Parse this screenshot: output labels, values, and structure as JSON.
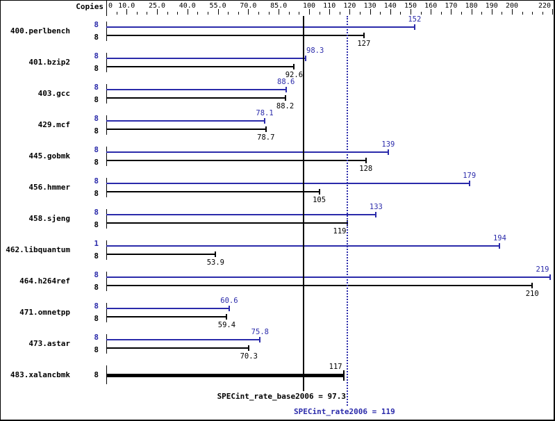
{
  "chart_data": {
    "type": "bar",
    "orientation": "horizontal",
    "title": "",
    "axis_title": "Copies",
    "xlabel": "",
    "ylabel": "",
    "xlim": [
      0,
      220
    ],
    "grid": false,
    "legend": null,
    "minor_tick_step": 5,
    "tick_labels": [
      {
        "value": 0,
        "text": "0",
        "align": "start"
      },
      {
        "value": 10,
        "text": "10.0",
        "align": "middle"
      },
      {
        "value": 25,
        "text": "25.0",
        "align": "middle"
      },
      {
        "value": 40,
        "text": "40.0",
        "align": "middle"
      },
      {
        "value": 55,
        "text": "55.0",
        "align": "middle"
      },
      {
        "value": 70,
        "text": "70.0",
        "align": "middle"
      },
      {
        "value": 85,
        "text": "85.0",
        "align": "middle"
      },
      {
        "value": 100,
        "text": "100",
        "align": "middle"
      },
      {
        "value": 110,
        "text": "110",
        "align": "middle"
      },
      {
        "value": 120,
        "text": "120",
        "align": "middle"
      },
      {
        "value": 130,
        "text": "130",
        "align": "middle"
      },
      {
        "value": 140,
        "text": "140",
        "align": "middle"
      },
      {
        "value": 150,
        "text": "150",
        "align": "middle"
      },
      {
        "value": 160,
        "text": "160",
        "align": "middle"
      },
      {
        "value": 170,
        "text": "170",
        "align": "middle"
      },
      {
        "value": 180,
        "text": "180",
        "align": "middle"
      },
      {
        "value": 190,
        "text": "190",
        "align": "middle"
      },
      {
        "value": 200,
        "text": "200",
        "align": "middle"
      },
      {
        "value": 220,
        "text": "220",
        "align": "end"
      }
    ],
    "categories": [
      "400.perlbench",
      "401.bzip2",
      "403.gcc",
      "429.mcf",
      "445.gobmk",
      "456.hmmer",
      "458.sjeng",
      "462.libquantum",
      "464.h264ref",
      "471.omnetpp",
      "473.astar",
      "483.xalancbmk"
    ],
    "series": [
      {
        "name": "peak",
        "color": "#2a2aaa",
        "copies": [
          8,
          8,
          8,
          8,
          8,
          8,
          8,
          1,
          8,
          8,
          8,
          null
        ],
        "values": [
          152,
          98.3,
          88.6,
          78.1,
          139,
          179,
          133,
          194,
          219,
          60.6,
          75.8,
          null
        ],
        "label_align": [
          "middle",
          "start",
          "middle",
          "middle",
          "middle",
          "middle",
          "middle",
          "middle",
          "end",
          "middle",
          "middle",
          null
        ]
      },
      {
        "name": "base",
        "color": "#000000",
        "copies": [
          8,
          8,
          8,
          8,
          8,
          8,
          8,
          8,
          8,
          8,
          8,
          8
        ],
        "values": [
          127,
          92.6,
          88.2,
          78.7,
          128,
          105,
          119,
          53.9,
          210,
          59.4,
          70.3,
          117
        ],
        "label_align": [
          "middle",
          "middle",
          "middle",
          "middle",
          "middle",
          "middle",
          "end",
          "middle",
          "middle",
          "middle",
          "middle",
          "end"
        ]
      }
    ],
    "combined_rows": [
      false,
      false,
      false,
      false,
      false,
      false,
      false,
      false,
      false,
      false,
      false,
      true
    ],
    "summary": {
      "base": {
        "text": "SPECint_rate_base2006 = 97.3",
        "value": 97.3,
        "color": "#000000"
      },
      "peak": {
        "text": "SPECint_rate2006 = 119",
        "value": 119,
        "color": "#2a2aaa"
      }
    }
  }
}
